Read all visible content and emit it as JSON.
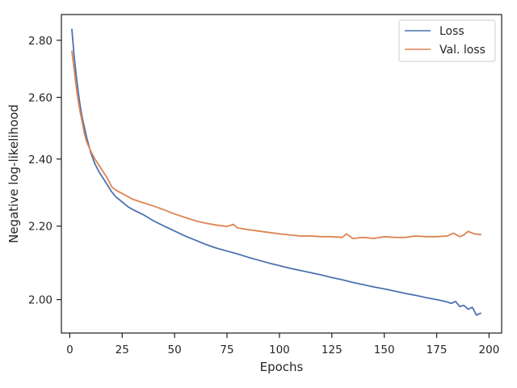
{
  "chart_data": {
    "type": "line",
    "xlabel": "Epochs",
    "ylabel": "Negative log-likelihood",
    "xlim": [
      -4,
      206
    ],
    "ylim": [
      1.915,
      2.895
    ],
    "y_scale": "log",
    "xticks": [
      0,
      25,
      50,
      75,
      100,
      125,
      150,
      175,
      200
    ],
    "xtick_labels": [
      "0",
      "25",
      "50",
      "75",
      "100",
      "125",
      "150",
      "175",
      "200"
    ],
    "yticks": [
      2.0,
      2.2,
      2.4,
      2.6,
      2.8
    ],
    "ytick_labels": [
      "2.00",
      "2.20",
      "2.40",
      "2.60",
      "2.80"
    ],
    "legend_position": "top-right",
    "series": [
      {
        "name": "Loss",
        "color": "#4c72b0",
        "x": [
          1,
          2,
          3,
          4,
          5,
          6,
          7,
          8,
          10,
          12,
          14,
          16,
          18,
          20,
          22,
          25,
          28,
          30,
          35,
          40,
          45,
          50,
          55,
          60,
          65,
          70,
          75,
          80,
          85,
          90,
          95,
          100,
          105,
          110,
          115,
          120,
          125,
          130,
          135,
          140,
          145,
          150,
          155,
          160,
          165,
          170,
          175,
          180,
          182,
          184,
          186,
          188,
          190,
          192,
          194,
          196
        ],
        "y": [
          2.84,
          2.75,
          2.68,
          2.62,
          2.57,
          2.53,
          2.5,
          2.47,
          2.42,
          2.385,
          2.36,
          2.34,
          2.32,
          2.3,
          2.285,
          2.27,
          2.255,
          2.248,
          2.233,
          2.215,
          2.2,
          2.186,
          2.172,
          2.16,
          2.148,
          2.138,
          2.13,
          2.122,
          2.113,
          2.105,
          2.097,
          2.09,
          2.083,
          2.077,
          2.071,
          2.065,
          2.058,
          2.052,
          2.045,
          2.039,
          2.033,
          2.028,
          2.022,
          2.016,
          2.011,
          2.005,
          2.0,
          1.994,
          1.99,
          1.995,
          1.982,
          1.985,
          1.975,
          1.98,
          1.96,
          1.965
        ]
      },
      {
        "name": "Val. loss",
        "color": "#dd8452",
        "x": [
          1,
          2,
          3,
          4,
          5,
          6,
          7,
          8,
          10,
          12,
          14,
          16,
          18,
          20,
          22,
          25,
          28,
          30,
          35,
          40,
          45,
          50,
          55,
          60,
          65,
          70,
          75,
          78,
          80,
          85,
          90,
          95,
          100,
          105,
          110,
          115,
          120,
          125,
          130,
          132,
          135,
          140,
          145,
          150,
          155,
          160,
          165,
          170,
          175,
          180,
          183,
          186,
          188,
          190,
          193,
          196
        ],
        "y": [
          2.76,
          2.7,
          2.64,
          2.59,
          2.55,
          2.515,
          2.48,
          2.455,
          2.425,
          2.4,
          2.38,
          2.36,
          2.34,
          2.315,
          2.305,
          2.295,
          2.285,
          2.278,
          2.268,
          2.258,
          2.247,
          2.235,
          2.225,
          2.215,
          2.208,
          2.203,
          2.199,
          2.205,
          2.195,
          2.19,
          2.186,
          2.182,
          2.178,
          2.175,
          2.172,
          2.172,
          2.17,
          2.17,
          2.168,
          2.178,
          2.165,
          2.168,
          2.165,
          2.17,
          2.168,
          2.168,
          2.172,
          2.17,
          2.17,
          2.172,
          2.18,
          2.17,
          2.175,
          2.185,
          2.178,
          2.176
        ]
      }
    ]
  }
}
